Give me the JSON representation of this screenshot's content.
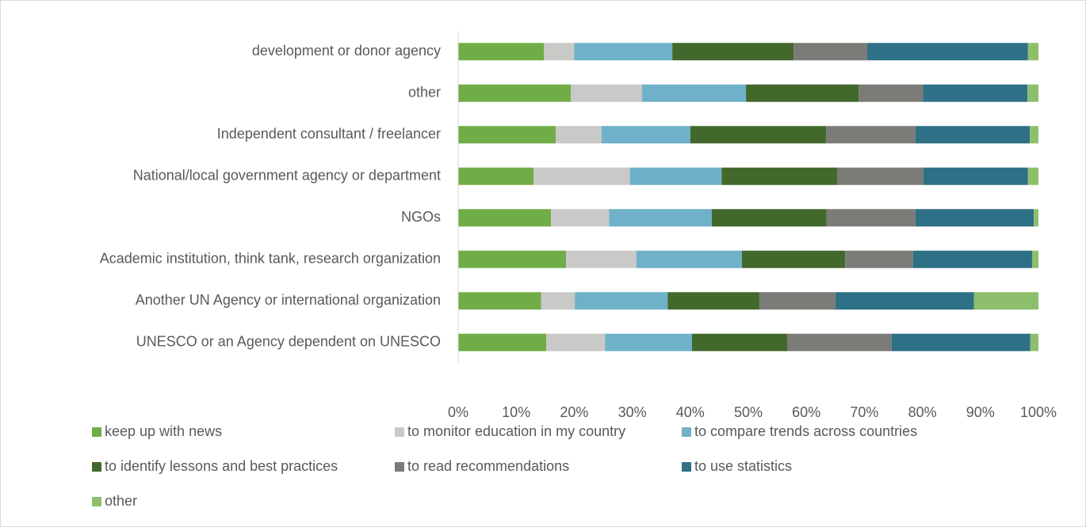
{
  "chart_data": {
    "type": "stacked_barh",
    "categories": [
      "development or donor agency",
      "other",
      "Independent consultant / freelancer",
      "National/local government agency or department",
      "NGOs",
      "Academic institution, think tank, research organization",
      "Another UN Agency or international organization",
      "UNESCO or an Agency dependent on UNESCO"
    ],
    "series": [
      {
        "name": "keep up with news",
        "color": "#70ad47",
        "values": [
          14.8,
          19.4,
          16.8,
          13.0,
          16.0,
          18.6,
          14.3,
          15.2
        ]
      },
      {
        "name": "to monitor education in my country",
        "color": "#c9c9c7",
        "values": [
          5.2,
          12.3,
          7.9,
          16.6,
          10.0,
          12.1,
          5.8,
          10.1
        ]
      },
      {
        "name": "to compare trends across countries",
        "color": "#6eb1c9",
        "values": [
          16.9,
          17.9,
          15.3,
          15.8,
          17.7,
          18.2,
          16.0,
          15.0
        ]
      },
      {
        "name": "to identify lessons and best practices",
        "color": "#43682b",
        "values": [
          20.9,
          19.4,
          23.4,
          19.9,
          19.8,
          17.8,
          15.8,
          16.4
        ]
      },
      {
        "name": "to read recommendations",
        "color": "#7b7b77",
        "values": [
          12.7,
          11.1,
          15.4,
          14.9,
          15.3,
          11.7,
          13.1,
          18.0
        ]
      },
      {
        "name": "to use statistics",
        "color": "#2e7086",
        "values": [
          27.7,
          18.0,
          19.7,
          18.0,
          20.4,
          20.5,
          23.9,
          23.9
        ]
      },
      {
        "name": "other",
        "color": "#8dbf6c",
        "values": [
          1.8,
          1.9,
          1.5,
          1.8,
          0.8,
          1.1,
          11.1,
          1.4
        ]
      }
    ],
    "xlim": [
      0,
      100
    ],
    "xticks": [
      {
        "value": 0,
        "label": "0%"
      },
      {
        "value": 10,
        "label": "10%"
      },
      {
        "value": 20,
        "label": "20%"
      },
      {
        "value": 30,
        "label": "30%"
      },
      {
        "value": 40,
        "label": "40%"
      },
      {
        "value": 50,
        "label": "50%"
      },
      {
        "value": 60,
        "label": "60%"
      },
      {
        "value": 70,
        "label": "70%"
      },
      {
        "value": 80,
        "label": "80%"
      },
      {
        "value": 90,
        "label": "90%"
      },
      {
        "value": 100,
        "label": "100%"
      }
    ],
    "grid": false,
    "legend": "bottom"
  }
}
